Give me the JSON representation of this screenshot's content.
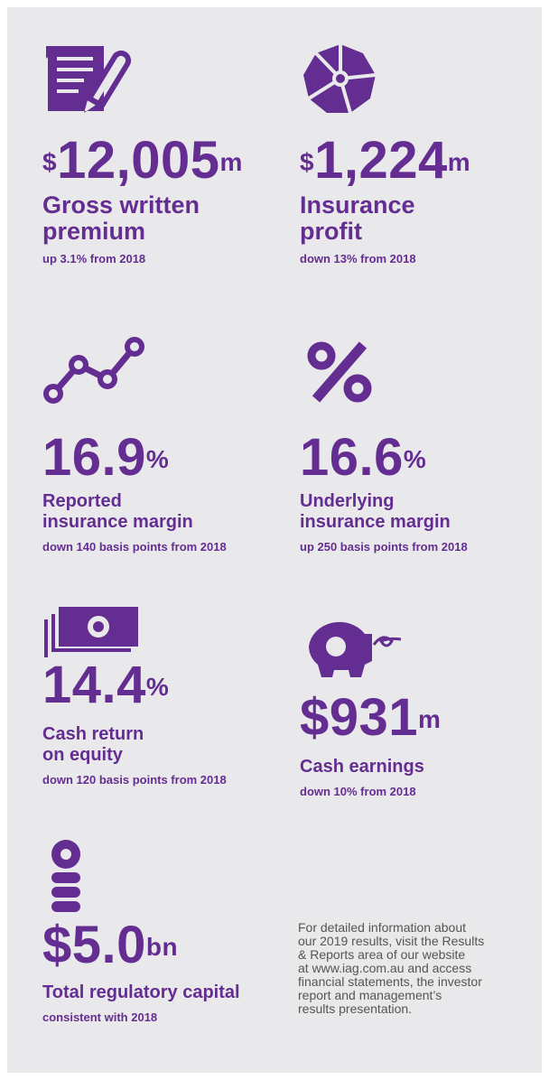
{
  "items": [
    {
      "prefix": "$",
      "number": "12,005",
      "suffix": "m",
      "label": [
        "Gross written",
        "premium"
      ],
      "sub": "up 3.1% from 2018"
    },
    {
      "prefix": "$",
      "number": "1,224",
      "suffix": "m",
      "label": [
        "Insurance",
        "profit"
      ],
      "sub": "down 13% from 2018"
    },
    {
      "number": "16.9",
      "suffix": "%",
      "label": [
        "Reported",
        "insurance margin"
      ],
      "sub": "down 140 basis points from 2018"
    },
    {
      "number": "16.6",
      "suffix": "%",
      "label": [
        "Underlying",
        "insurance margin"
      ],
      "sub": "up 250 basis points from 2018"
    },
    {
      "number": "14.4",
      "suffix": "%",
      "label": [
        "Cash return",
        "on equity"
      ],
      "sub": "down 120 basis points from 2018"
    },
    {
      "number": "$931",
      "suffix": "m",
      "label": [
        "Cash earnings"
      ],
      "sub": "down 10% from 2018"
    },
    {
      "number": "$5.0",
      "suffix": "bn",
      "label": [
        "Total regulatory capital"
      ],
      "sub": "consistent with 2018"
    }
  ],
  "note": [
    "For detailed information about",
    "our 2019 results, visit the Results",
    "& Reports area of our website",
    "at www.iag.com.au and access",
    "financial statements, the investor",
    "report and management’s",
    "results presentation."
  ]
}
